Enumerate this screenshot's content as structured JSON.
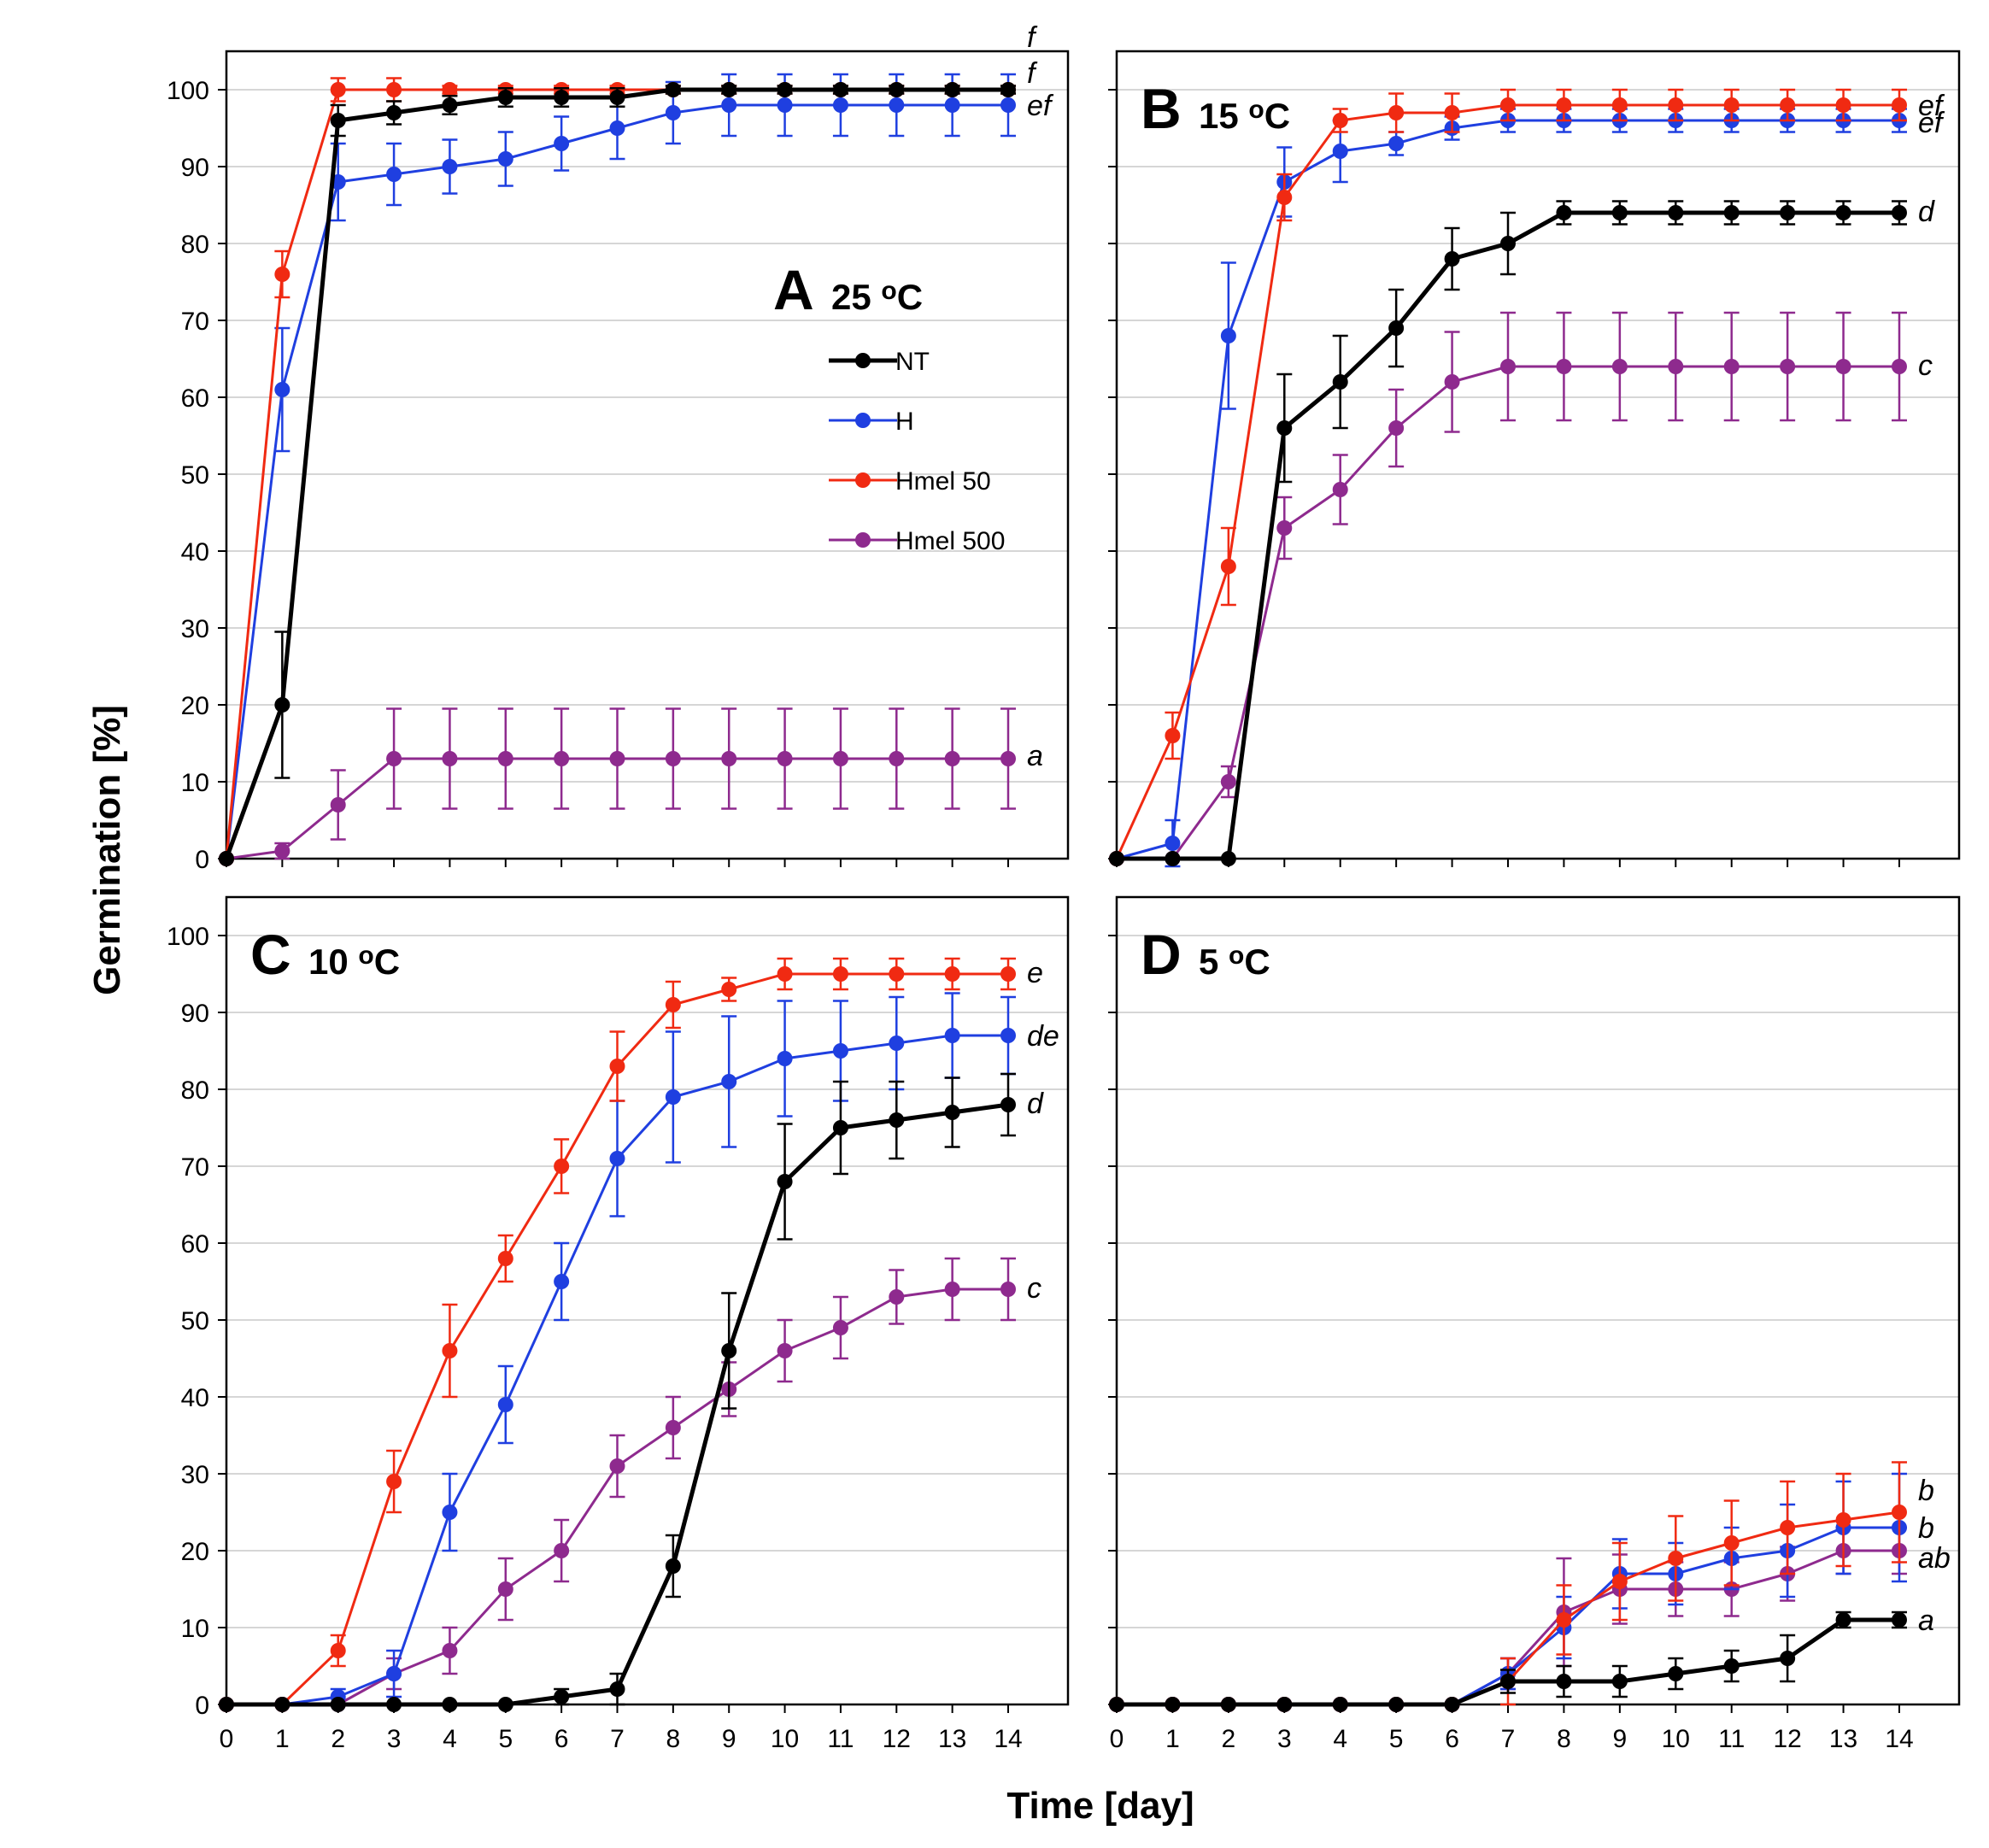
{
  "chart_data": {
    "type": "line",
    "ylabel": "Germination [%]",
    "xlabel": "Time [day]",
    "xlim": [
      0,
      14
    ],
    "ylim": [
      0,
      100
    ],
    "x_ticks": [
      0,
      1,
      2,
      3,
      4,
      5,
      6,
      7,
      8,
      9,
      10,
      11,
      12,
      13,
      14
    ],
    "y_ticks": [
      0,
      10,
      20,
      30,
      40,
      50,
      60,
      70,
      80,
      90,
      100
    ],
    "grid": "horizontal",
    "legend": {
      "placement": "inside panel A, right",
      "entries": [
        "NT",
        "H",
        "Hmel 50",
        "Hmel 500"
      ]
    },
    "colors": {
      "NT": "#000000",
      "H": "#1f3fe0",
      "Hmel 50": "#f02a12",
      "Hmel 500": "#8e2a8e"
    },
    "panels": [
      {
        "letter": "A",
        "temperature": "25 °C",
        "temp_num": "25",
        "temp_unit": "oC",
        "x": [
          0,
          1,
          2,
          3,
          4,
          5,
          6,
          7,
          8,
          9,
          10,
          11,
          12,
          13,
          14
        ],
        "series": [
          {
            "name": "NT",
            "values": [
              0,
              20,
              96,
              97,
              98,
              99,
              99,
              99,
              100,
              100,
              100,
              100,
              100,
              100,
              100
            ],
            "errors": [
              0,
              9.5,
              2,
              1.5,
              1.2,
              1.2,
              1.2,
              1.2,
              0.5,
              0.5,
              0.5,
              0.5,
              0.5,
              0.5,
              0.5
            ],
            "letter": "f"
          },
          {
            "name": "H",
            "values": [
              0,
              61,
              88,
              89,
              90,
              91,
              93,
              95,
              97,
              98,
              98,
              98,
              98,
              98,
              98
            ],
            "errors": [
              0,
              8,
              5,
              4,
              3.5,
              3.5,
              3.5,
              4,
              4,
              4,
              4,
              4,
              4,
              4,
              4
            ],
            "letter": "ef"
          },
          {
            "name": "Hmel 50",
            "values": [
              0,
              76,
              100,
              100,
              100,
              100,
              100,
              100,
              100,
              100,
              100,
              100,
              100,
              100,
              100
            ],
            "errors": [
              0,
              3,
              1.5,
              1.5,
              0.5,
              0.5,
              0.5,
              0.5,
              0.5,
              0.5,
              0.5,
              0.5,
              0.5,
              0.5,
              0.5
            ],
            "letter": "f"
          },
          {
            "name": "Hmel 500",
            "values": [
              0,
              1,
              7,
              13,
              13,
              13,
              13,
              13,
              13,
              13,
              13,
              13,
              13,
              13,
              13
            ],
            "errors": [
              0,
              1,
              4.5,
              6.5,
              6.5,
              6.5,
              6.5,
              6.5,
              6.5,
              6.5,
              6.5,
              6.5,
              6.5,
              6.5,
              6.5
            ],
            "letter": "a"
          }
        ]
      },
      {
        "letter": "B",
        "temperature": "15 °C",
        "temp_num": "15",
        "temp_unit": "oC",
        "x": [
          0,
          1,
          2,
          3,
          4,
          5,
          6,
          7,
          8,
          9,
          10,
          11,
          12,
          13,
          14
        ],
        "series": [
          {
            "name": "NT",
            "values": [
              0,
              0,
              0,
              56,
              62,
              69,
              78,
              80,
              84,
              84,
              84,
              84,
              84,
              84,
              84
            ],
            "errors": [
              0,
              0,
              0,
              7,
              6,
              5,
              4,
              4,
              1.5,
              1.5,
              1.5,
              1.5,
              1.5,
              1.5,
              1.5
            ],
            "letter": "d"
          },
          {
            "name": "H",
            "values": [
              0,
              2,
              68,
              88,
              92,
              93,
              95,
              96,
              96,
              96,
              96,
              96,
              96,
              96,
              96
            ],
            "errors": [
              0,
              3,
              9.5,
              4.5,
              4,
              1.5,
              1.5,
              1.5,
              1.5,
              1.5,
              1.5,
              1.5,
              1.5,
              1.5,
              1.5
            ],
            "letter": "ef"
          },
          {
            "name": "Hmel 50",
            "values": [
              0,
              16,
              38,
              86,
              96,
              97,
              97,
              98,
              98,
              98,
              98,
              98,
              98,
              98,
              98
            ],
            "errors": [
              0,
              3,
              5,
              3,
              1.5,
              2.5,
              2.5,
              2,
              2,
              2,
              2,
              2,
              2,
              2,
              2
            ],
            "letter": "ef"
          },
          {
            "name": "Hmel 500",
            "values": [
              0,
              0,
              10,
              43,
              48,
              56,
              62,
              64,
              64,
              64,
              64,
              64,
              64,
              64,
              64
            ],
            "errors": [
              0,
              0,
              2,
              4,
              4.5,
              5,
              6.5,
              7,
              7,
              7,
              7,
              7,
              7,
              7,
              7
            ],
            "letter": "c"
          }
        ]
      },
      {
        "letter": "C",
        "temperature": "10 °C",
        "temp_num": "10",
        "temp_unit": "oC",
        "x": [
          0,
          1,
          2,
          3,
          4,
          5,
          6,
          7,
          8,
          9,
          10,
          11,
          12,
          13,
          14
        ],
        "series": [
          {
            "name": "NT",
            "values": [
              0,
              0,
              0,
              0,
              0,
              0,
              1,
              2,
              18,
              46,
              68,
              75,
              76,
              77,
              78
            ],
            "errors": [
              0,
              0,
              0,
              0,
              0,
              0,
              1,
              2,
              4,
              7.5,
              7.5,
              6,
              5,
              4.5,
              4
            ],
            "letter": "d"
          },
          {
            "name": "H",
            "values": [
              0,
              0,
              1,
              4,
              25,
              39,
              55,
              71,
              79,
              81,
              84,
              85,
              86,
              87,
              87
            ],
            "errors": [
              0,
              0,
              1,
              3,
              5,
              5,
              5,
              7.5,
              8.5,
              8.5,
              7.5,
              6.5,
              6,
              5.5,
              5
            ],
            "letter": "de"
          },
          {
            "name": "Hmel 50",
            "values": [
              0,
              0,
              7,
              29,
              46,
              58,
              70,
              83,
              91,
              93,
              95,
              95,
              95,
              95,
              95
            ],
            "errors": [
              0,
              0,
              2,
              4,
              6,
              3,
              3.5,
              4.5,
              3,
              1.5,
              2,
              2,
              2,
              2,
              2
            ],
            "letter": "e"
          },
          {
            "name": "Hmel 500",
            "values": [
              0,
              0,
              0,
              4,
              7,
              15,
              20,
              31,
              36,
              41,
              46,
              49,
              53,
              54,
              54
            ],
            "errors": [
              0,
              0,
              0,
              2,
              3,
              4,
              4,
              4,
              4,
              3.5,
              4,
              4,
              3.5,
              4,
              4
            ],
            "letter": "c"
          }
        ]
      },
      {
        "letter": "D",
        "temperature": "5 °C",
        "temp_num": "5",
        "temp_unit": "oC",
        "x": [
          0,
          1,
          2,
          3,
          4,
          5,
          6,
          7,
          8,
          9,
          10,
          11,
          12,
          13,
          14
        ],
        "series": [
          {
            "name": "NT",
            "values": [
              0,
              0,
              0,
              0,
              0,
              0,
              0,
              3,
              3,
              3,
              4,
              5,
              6,
              11,
              11
            ],
            "errors": [
              0,
              0,
              0,
              0,
              0,
              0,
              0,
              1.5,
              2,
              2,
              2,
              2,
              3,
              1,
              1
            ],
            "letter": "a"
          },
          {
            "name": "H",
            "values": [
              0,
              0,
              0,
              0,
              0,
              0,
              0,
              4,
              10,
              17,
              17,
              19,
              20,
              23,
              23
            ],
            "errors": [
              0,
              0,
              0,
              0,
              0,
              0,
              0,
              2,
              4,
              4.5,
              4,
              4,
              6,
              6,
              7
            ],
            "letter": "b"
          },
          {
            "name": "Hmel 50",
            "values": [
              0,
              0,
              0,
              0,
              0,
              0,
              0,
              3,
              11,
              16,
              19,
              21,
              23,
              24,
              25
            ],
            "errors": [
              0,
              0,
              0,
              0,
              0,
              0,
              0,
              3,
              4.5,
              5,
              5.5,
              5.5,
              6,
              6,
              6.5
            ],
            "letter": "b"
          },
          {
            "name": "Hmel 500",
            "values": [
              0,
              0,
              0,
              0,
              0,
              0,
              0,
              4,
              12,
              15,
              15,
              15,
              17,
              20,
              20
            ],
            "errors": [
              0,
              0,
              0,
              0,
              0,
              0,
              0,
              2,
              7,
              4.5,
              3.5,
              3.5,
              3.5,
              3,
              3
            ],
            "letter": "ab"
          }
        ]
      }
    ]
  }
}
